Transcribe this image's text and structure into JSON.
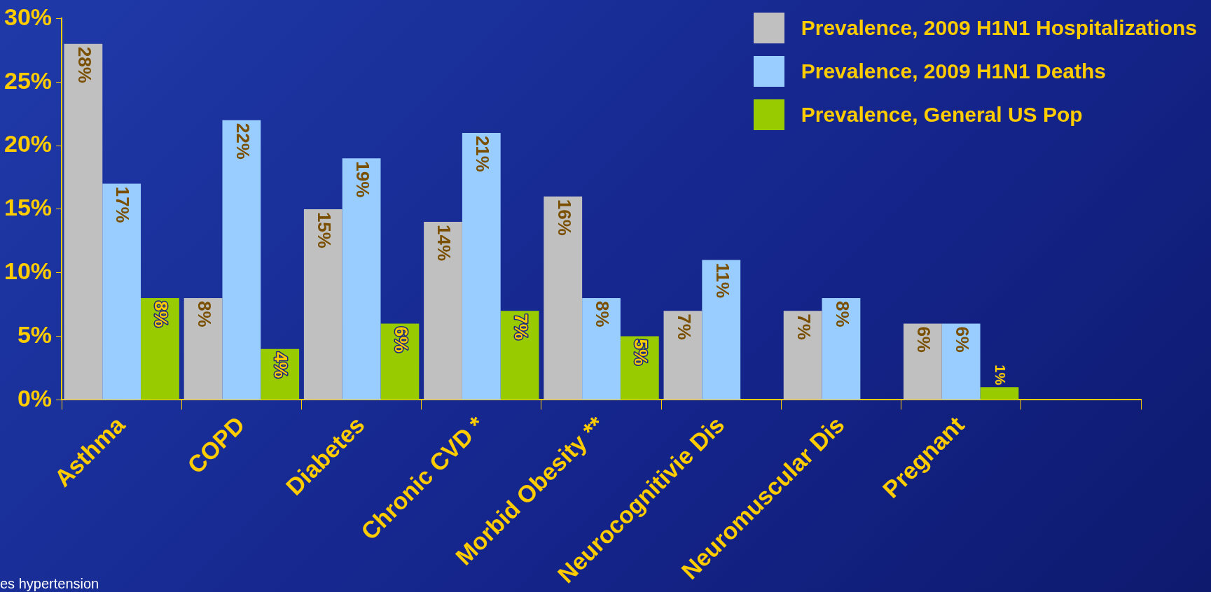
{
  "chart_data": {
    "type": "bar",
    "categories": [
      "Asthma",
      "COPD",
      "Diabetes",
      "Chronic CVD *",
      "Morbid Obesity **",
      "Neurocognitivie Dis",
      "Neuromuscular Dis",
      "Pregnant",
      null
    ],
    "series": [
      {
        "name": "Prevalence, 2009 H1N1 Hospitalizations",
        "color": "#c0c0c0",
        "values": [
          28,
          8,
          15,
          14,
          16,
          7,
          7,
          6,
          null
        ],
        "value_labels": [
          "28%",
          "8%",
          "15%",
          "14%",
          "16%",
          "7%",
          "7%",
          "6%",
          null
        ]
      },
      {
        "name": "Prevalence, 2009 H1N1 Deaths",
        "color": "#99ccff",
        "values": [
          17,
          22,
          19,
          21,
          8,
          11,
          8,
          6,
          null
        ],
        "value_labels": [
          "17%",
          "22%",
          "19%",
          "21%",
          "8%",
          "11%",
          "8%",
          "6%",
          null
        ]
      },
      {
        "name": "Prevalence, General US Pop",
        "color": "#99cc00",
        "values": [
          8,
          4,
          6,
          7,
          5,
          null,
          null,
          1,
          null
        ],
        "value_labels": [
          "8%",
          "4%",
          "6%",
          "7%",
          "5%",
          null,
          null,
          "1%",
          null
        ]
      }
    ],
    "ylim": [
      0,
      30
    ],
    "yticks": [
      {
        "value": 0,
        "label": "0%"
      },
      {
        "value": 5,
        "label": "5%"
      },
      {
        "value": 10,
        "label": "10%"
      },
      {
        "value": 15,
        "label": "15%"
      },
      {
        "value": 20,
        "label": "20%"
      },
      {
        "value": 25,
        "label": "25%"
      },
      {
        "value": 30,
        "label": "30%"
      }
    ],
    "grid": false,
    "legend": "top right",
    "annotations": [
      "es hypertension"
    ]
  }
}
